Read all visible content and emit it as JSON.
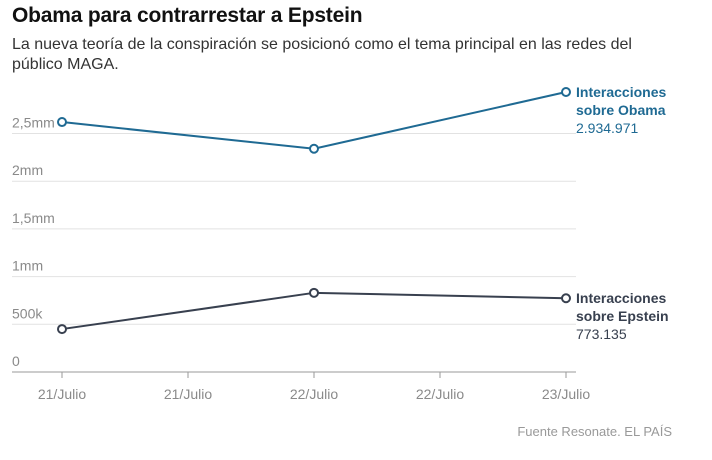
{
  "chart_data": {
    "type": "line",
    "title": "Obama para contrarrestar a Epstein",
    "subtitle": "La nueva teoría de la conspiración se posicionó como el tema principal en las redes del público MAGA.",
    "categories": [
      "21/Julio",
      "22/Julio",
      "23/Julio"
    ],
    "x_tick_labels": [
      "21/Julio",
      "21/Julio",
      "22/Julio",
      "22/Julio",
      "23/Julio"
    ],
    "y_ticks": [
      {
        "value": 0,
        "label": "0"
      },
      {
        "value": 500000,
        "label": "500k"
      },
      {
        "value": 1000000,
        "label": "1mm"
      },
      {
        "value": 1500000,
        "label": "1,5mm"
      },
      {
        "value": 2000000,
        "label": "2mm"
      },
      {
        "value": 2500000,
        "label": "2,5mm"
      }
    ],
    "ylim": [
      0,
      2934971
    ],
    "grid": true,
    "series": [
      {
        "name_line1": "Interacciones",
        "name_line2": "sobre Obama",
        "color": "#1f6a93",
        "values": [
          2620000,
          2340000,
          2934971
        ],
        "last_label": "2.934.971"
      },
      {
        "name_line1": "Interacciones",
        "name_line2": "sobre Epstein",
        "color": "#38404f",
        "values": [
          450000,
          830000,
          773135
        ],
        "last_label": "773.135"
      }
    ]
  },
  "source": "Fuente Resonate. EL PAÍS"
}
